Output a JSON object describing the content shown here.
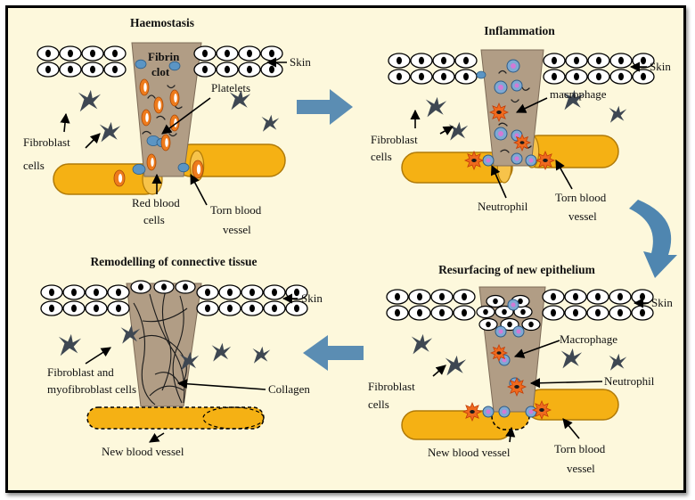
{
  "colors": {
    "background": "#fdf8dc",
    "wound": "#b19d85",
    "blood_vessel": "#f5b114",
    "platelet": "#5b95c4",
    "red_blood_cell": "#ee7b1c",
    "macrophage": "#ef6a1e",
    "arrow": "#5b8db3"
  },
  "panels": {
    "haemostasis": {
      "title": "Haemostasis",
      "skin": "Skin",
      "fibrin_clot_1": "Fibrin",
      "fibrin_clot_2": "clot",
      "platelets": "Platelets",
      "fibroblast_1": "Fibroblast",
      "fibroblast_2": "cells",
      "red_blood_1": "Red blood",
      "red_blood_2": "cells",
      "torn_1": "Torn blood",
      "torn_2": "vessel"
    },
    "inflammation": {
      "title": "Inflammation",
      "skin": "Skin",
      "macrophage": "macrophage",
      "fibroblast_1": "Fibroblast",
      "fibroblast_2": "cells",
      "neutrophil": "Neutrophil",
      "torn_1": "Torn blood",
      "torn_2": "vessel"
    },
    "remodelling": {
      "title": "Remodelling of connective tissue",
      "skin": "Skin",
      "fibroblast_1": "Fibroblast and",
      "fibroblast_2": "myofibroblast cells",
      "collagen": "Collagen",
      "new_vessel": "New blood vessel"
    },
    "resurfacing": {
      "title": "Resurfacing of new epithelium",
      "skin": "Skin",
      "macrophage": "Macrophage",
      "neutrophil": "Neutrophil",
      "fibroblast_1": "Fibroblast",
      "fibroblast_2": "cells",
      "new_vessel": "New blood vessel",
      "torn_1": "Torn blood",
      "torn_2": "vessel"
    }
  }
}
